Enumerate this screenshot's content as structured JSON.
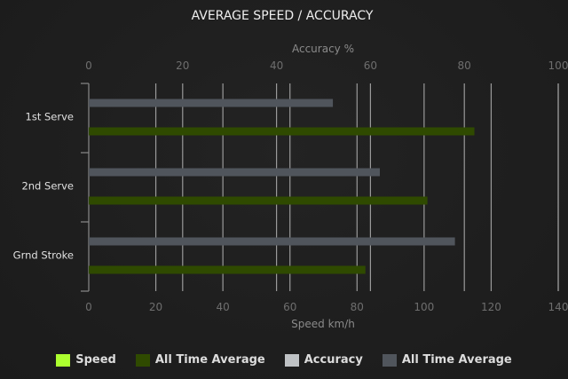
{
  "chart_data": {
    "type": "bar",
    "orientation": "horizontal",
    "title": "AVERAGE SPEED / ACCURACY",
    "categories": [
      "1st Serve",
      "2nd Serve",
      "Grnd Stroke"
    ],
    "x_top": {
      "label": "Accuracy %",
      "range": [
        0,
        100
      ],
      "ticks": [
        0,
        20,
        40,
        60,
        80,
        100
      ]
    },
    "x_bottom": {
      "label": "Speed km/h",
      "range": [
        0,
        140
      ],
      "ticks": [
        0,
        20,
        40,
        60,
        80,
        100,
        120,
        140
      ]
    },
    "grid": true,
    "legend_position": "bottom",
    "legend": [
      {
        "name": "Speed",
        "color": "#adff2f"
      },
      {
        "name": "All Time Average",
        "color": "#2f4a00"
      },
      {
        "name": "Accuracy",
        "color": "#bfc2c5"
      },
      {
        "name": "All Time Average",
        "color": "#50555c"
      }
    ],
    "series": [
      {
        "name": "All Time Average",
        "axis": "accuracy",
        "color": "#50555c",
        "values": [
          52,
          62,
          78
        ]
      },
      {
        "name": "All Time Average",
        "axis": "speed",
        "color": "#2f4a00",
        "values": [
          115,
          101,
          82.5
        ]
      }
    ]
  }
}
